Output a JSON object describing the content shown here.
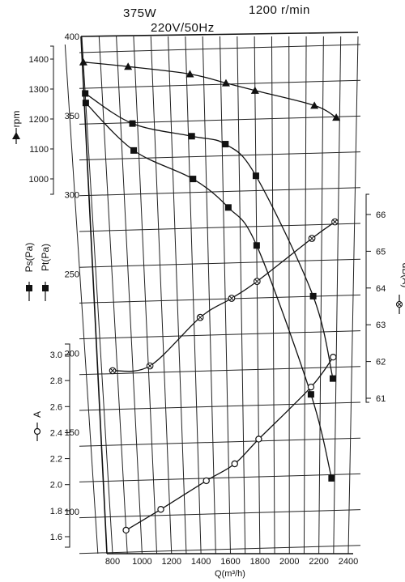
{
  "header": {
    "power": "375W",
    "voltage": "220V/50Hz",
    "speed": "1200 r/min"
  },
  "chart_data": {
    "type": "line",
    "xlabel": "Q(m³/h)",
    "xticks": [
      "800",
      "1000",
      "1200",
      "1400",
      "1600",
      "1800",
      "2000",
      "2200",
      "2400"
    ],
    "xlim": [
      700,
      2400
    ],
    "grid": true,
    "axes": {
      "pressure": {
        "ticks": [
          "100",
          "150",
          "200",
          "250",
          "300",
          "350",
          "400"
        ],
        "lim": [
          80,
          400
        ],
        "labels": [
          "Ps(Pa)",
          "Pt(Pa)"
        ]
      },
      "rpm": {
        "ticks": [
          "1000",
          "1100",
          "1200",
          "1300",
          "1400"
        ],
        "lim": [
          950,
          1450
        ],
        "label": "rpm"
      },
      "current": {
        "ticks": [
          "1.6",
          "1.8",
          "2.0",
          "2.2",
          "2.4",
          "2.6",
          "2.8",
          "3.0"
        ],
        "lim": [
          1.55,
          3.05
        ],
        "label": "A"
      },
      "noise": {
        "ticks": [
          "61",
          "62",
          "63",
          "64",
          "65",
          "66"
        ],
        "lim": [
          61,
          66.5
        ],
        "label": "dB(A)"
      }
    },
    "series": [
      {
        "name": "rpm",
        "axis": "rpm",
        "marker": "triangle",
        "x": [
          800,
          1060,
          1420,
          1630,
          1800,
          2150,
          2280
        ],
        "y": [
          1390,
          1375,
          1350,
          1320,
          1295,
          1245,
          1205
        ]
      },
      {
        "name": "Pt(Pa)",
        "axis": "pressure",
        "marker": "square",
        "x": [
          800,
          1070,
          1420,
          1620,
          1800,
          2150,
          2280
        ],
        "y": [
          364,
          345,
          337,
          332,
          312,
          236,
          184
        ]
      },
      {
        "name": "Ps(Pa)",
        "axis": "pressure",
        "marker": "square",
        "x": [
          800,
          1070,
          1420,
          1630,
          1800,
          2140,
          2280
        ],
        "y": [
          358,
          328,
          310,
          292,
          268,
          174,
          121
        ]
      },
      {
        "name": "dB(A)",
        "axis": "noise",
        "marker": "circle-x",
        "x": [
          870,
          1110,
          1440,
          1640,
          1800,
          2140,
          2280
        ],
        "y": [
          61.75,
          61.88,
          63.2,
          63.72,
          64.18,
          65.35,
          65.8
        ]
      },
      {
        "name": "A",
        "axis": "current",
        "marker": "circle",
        "x": [
          900,
          1140,
          1450,
          1640,
          1800,
          2140,
          2280
        ],
        "y": [
          1.65,
          1.81,
          2.03,
          2.16,
          2.35,
          2.75,
          2.98
        ]
      }
    ]
  }
}
